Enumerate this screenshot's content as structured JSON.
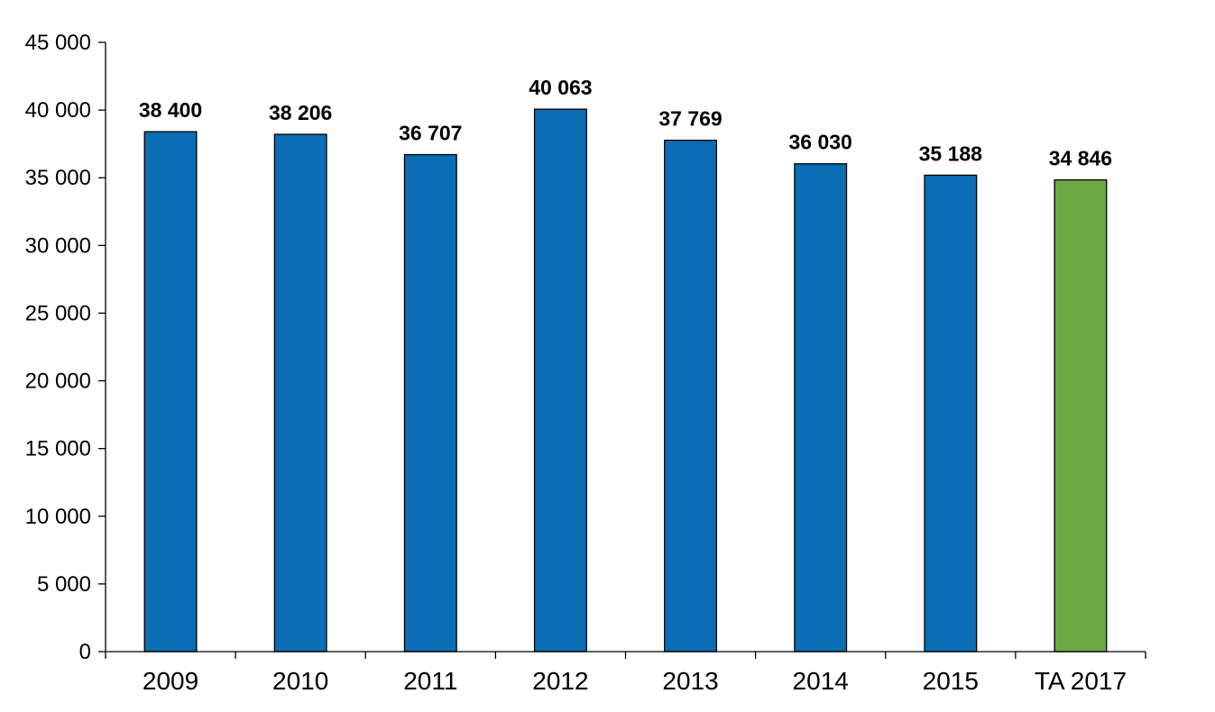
{
  "chart_data": {
    "type": "bar",
    "categories": [
      "2009",
      "2010",
      "2011",
      "2012",
      "2013",
      "2014",
      "2015",
      "TA 2017"
    ],
    "values": [
      38400,
      38206,
      36707,
      40063,
      37769,
      36030,
      35188,
      34846
    ],
    "data_labels": [
      "38 400",
      "38 206",
      "36 707",
      "40 063",
      "37 769",
      "36 030",
      "35 188",
      "34 846"
    ],
    "bar_colors": [
      "#0b6db3",
      "#0b6db3",
      "#0b6db3",
      "#0b6db3",
      "#0b6db3",
      "#0b6db3",
      "#0b6db3",
      "#6aa842"
    ],
    "y_ticks": [
      0,
      5000,
      10000,
      15000,
      20000,
      25000,
      30000,
      35000,
      40000,
      45000
    ],
    "y_tick_labels": [
      "0",
      "5 000",
      "10 000",
      "15 000",
      "20 000",
      "25 000",
      "30 000",
      "35 000",
      "40 000",
      "45 000"
    ],
    "ylim": [
      0,
      45000
    ],
    "title": "",
    "xlabel": "",
    "ylabel": "",
    "grid": false,
    "legend": "none"
  }
}
